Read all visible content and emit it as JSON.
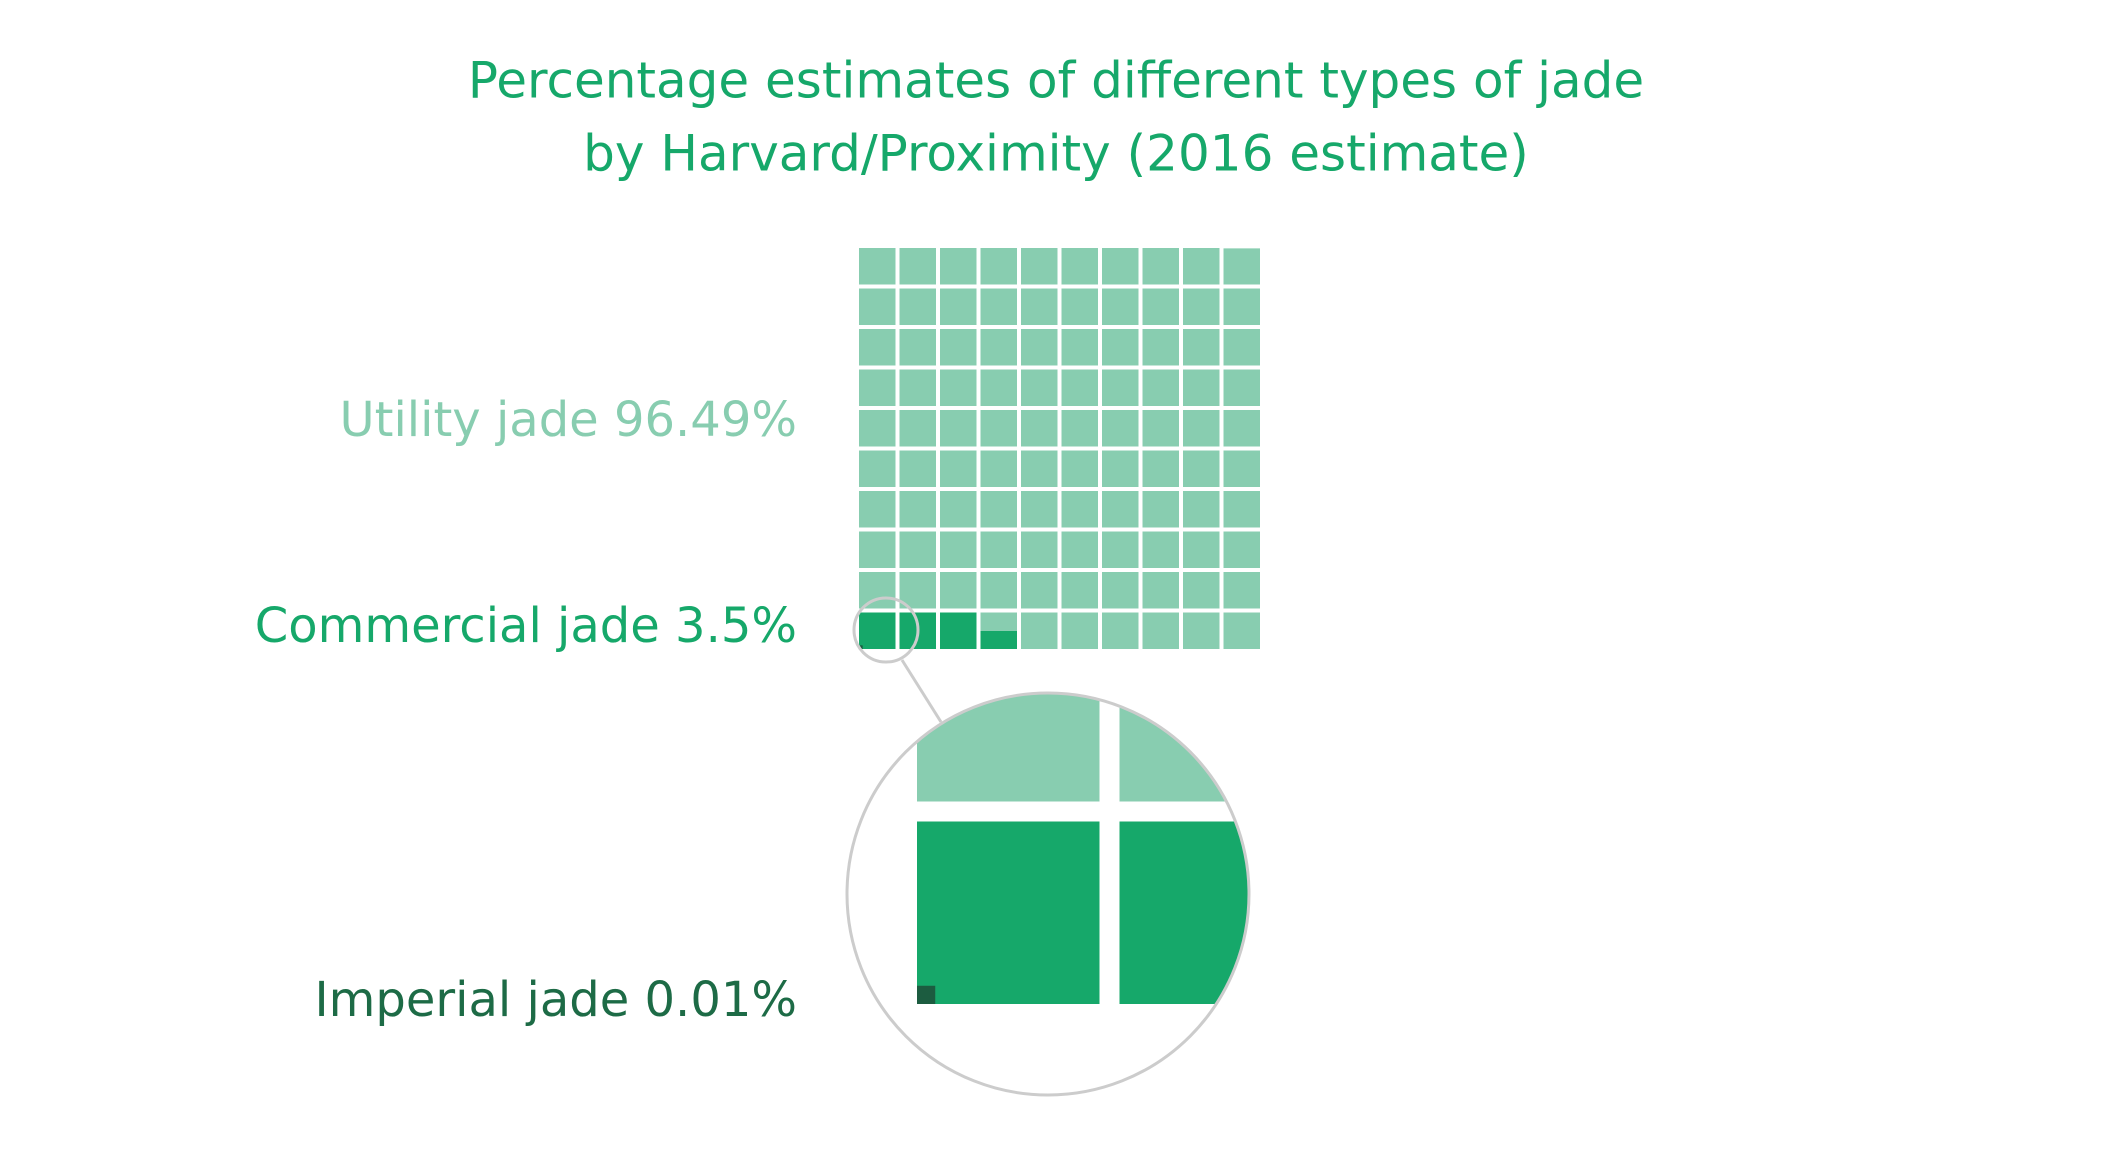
{
  "chart_data": {
    "type": "waffle",
    "title": "Percentage estimates of different types of jade",
    "subtitle": "by Harvard/Proximity (2016 estimate)",
    "categories": [
      "Utility jade",
      "Commercial jade",
      "Imperial jade"
    ],
    "values": [
      96.49,
      3.5,
      0.01
    ],
    "value_labels": [
      "96.49%",
      "3.5%",
      "0.01%"
    ],
    "colors": [
      "#88cdb0",
      "#16a86a",
      "#1c5c40"
    ],
    "label_colors": [
      "#88cdb0",
      "#16a86a",
      "#1d6b46"
    ]
  }
}
